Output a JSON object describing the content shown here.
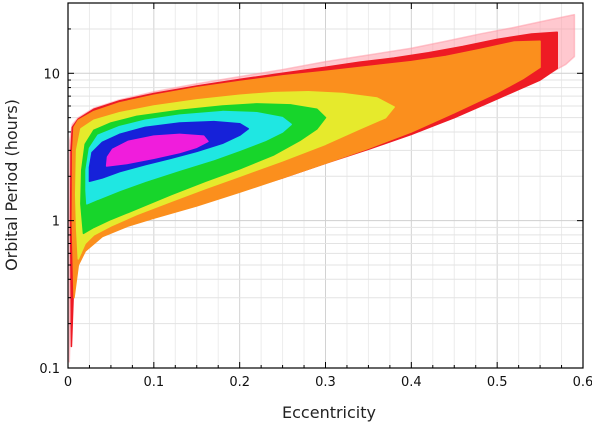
{
  "chart_data": {
    "type": "heatmap",
    "title": "",
    "xlabel": "Eccentricity",
    "ylabel": "Orbital Period (hours)",
    "xlim": [
      0,
      0.6
    ],
    "ylim": [
      0.1,
      30
    ],
    "y_scale": "log",
    "grid": true,
    "legend": "none",
    "x_ticks": [
      {
        "value": 0,
        "label": "0"
      },
      {
        "value": 0.1,
        "label": "0.1"
      },
      {
        "value": 0.2,
        "label": "0.2"
      },
      {
        "value": 0.3,
        "label": "0.3"
      },
      {
        "value": 0.4,
        "label": "0.4"
      },
      {
        "value": 0.5,
        "label": "0.5"
      },
      {
        "value": 0.6,
        "label": "0.6"
      }
    ],
    "y_ticks": [
      {
        "value": 0.1,
        "label": "0.1"
      },
      {
        "value": 1,
        "label": "1"
      },
      {
        "value": 10,
        "label": "10"
      }
    ],
    "levels": [
      {
        "name": "halo",
        "color": "#ff9aa8",
        "opacity": 0.55,
        "polygon": [
          [
            0.0015,
            0.11
          ],
          [
            0.003,
            0.2
          ],
          [
            0.006,
            0.4
          ],
          [
            0.01,
            0.6
          ],
          [
            0.02,
            0.75
          ],
          [
            0.04,
            0.88
          ],
          [
            0.07,
            1.0
          ],
          [
            0.1,
            1.12
          ],
          [
            0.15,
            1.35
          ],
          [
            0.2,
            1.65
          ],
          [
            0.25,
            2.0
          ],
          [
            0.3,
            2.5
          ],
          [
            0.35,
            3.1
          ],
          [
            0.4,
            3.9
          ],
          [
            0.45,
            5.0
          ],
          [
            0.5,
            6.8
          ],
          [
            0.55,
            9.2
          ],
          [
            0.58,
            11.5
          ],
          [
            0.59,
            13
          ],
          [
            0.59,
            25
          ],
          [
            0.56,
            23
          ],
          [
            0.52,
            20.5
          ],
          [
            0.48,
            18.5
          ],
          [
            0.44,
            16.5
          ],
          [
            0.4,
            14.8
          ],
          [
            0.35,
            13.3
          ],
          [
            0.3,
            12.0
          ],
          [
            0.25,
            10.6
          ],
          [
            0.2,
            9.5
          ],
          [
            0.15,
            8.5
          ],
          [
            0.1,
            7.5
          ],
          [
            0.06,
            6.6
          ],
          [
            0.03,
            5.8
          ],
          [
            0.012,
            5.0
          ],
          [
            0.005,
            4.5
          ],
          [
            0.002,
            3.5
          ],
          [
            0.001,
            1.0
          ]
        ]
      },
      {
        "name": "red",
        "color": "#ee1b24",
        "opacity": 1,
        "polygon": [
          [
            0.004,
            0.14
          ],
          [
            0.006,
            0.3
          ],
          [
            0.01,
            0.5
          ],
          [
            0.02,
            0.68
          ],
          [
            0.04,
            0.82
          ],
          [
            0.07,
            0.95
          ],
          [
            0.1,
            1.06
          ],
          [
            0.15,
            1.28
          ],
          [
            0.2,
            1.58
          ],
          [
            0.25,
            1.95
          ],
          [
            0.3,
            2.45
          ],
          [
            0.35,
            3.05
          ],
          [
            0.4,
            3.85
          ],
          [
            0.45,
            5.0
          ],
          [
            0.5,
            6.7
          ],
          [
            0.55,
            9.0
          ],
          [
            0.57,
            10.8
          ],
          [
            0.57,
            19
          ],
          [
            0.54,
            18.5
          ],
          [
            0.5,
            17
          ],
          [
            0.46,
            15.2
          ],
          [
            0.42,
            13.8
          ],
          [
            0.38,
            12.7
          ],
          [
            0.34,
            11.9
          ],
          [
            0.3,
            11.0
          ],
          [
            0.25,
            10.0
          ],
          [
            0.2,
            9.1
          ],
          [
            0.15,
            8.2
          ],
          [
            0.1,
            7.3
          ],
          [
            0.06,
            6.5
          ],
          [
            0.03,
            5.7
          ],
          [
            0.012,
            4.9
          ],
          [
            0.005,
            4.3
          ],
          [
            0.0035,
            3.0
          ],
          [
            0.003,
            1.0
          ]
        ]
      },
      {
        "name": "orange",
        "color": "#fb8f1d",
        "opacity": 1,
        "polygon": [
          [
            0.007,
            0.3
          ],
          [
            0.012,
            0.5
          ],
          [
            0.02,
            0.62
          ],
          [
            0.04,
            0.78
          ],
          [
            0.07,
            0.92
          ],
          [
            0.1,
            1.04
          ],
          [
            0.15,
            1.26
          ],
          [
            0.2,
            1.56
          ],
          [
            0.25,
            1.95
          ],
          [
            0.3,
            2.45
          ],
          [
            0.35,
            3.1
          ],
          [
            0.4,
            4.0
          ],
          [
            0.45,
            5.4
          ],
          [
            0.5,
            7.4
          ],
          [
            0.53,
            9.2
          ],
          [
            0.55,
            11
          ],
          [
            0.55,
            16.5
          ],
          [
            0.52,
            16.3
          ],
          [
            0.48,
            14.5
          ],
          [
            0.44,
            13.0
          ],
          [
            0.4,
            12.0
          ],
          [
            0.36,
            11.3
          ],
          [
            0.3,
            10.3
          ],
          [
            0.25,
            9.6
          ],
          [
            0.2,
            8.8
          ],
          [
            0.15,
            8.0
          ],
          [
            0.1,
            7.1
          ],
          [
            0.06,
            6.3
          ],
          [
            0.03,
            5.5
          ],
          [
            0.012,
            4.8
          ],
          [
            0.007,
            4.3
          ],
          [
            0.0055,
            3.0
          ],
          [
            0.005,
            1.0
          ]
        ]
      },
      {
        "name": "yellow",
        "color": "#e6ea2c",
        "opacity": 1,
        "polygon": [
          [
            0.012,
            0.55
          ],
          [
            0.02,
            0.7
          ],
          [
            0.03,
            0.8
          ],
          [
            0.05,
            0.92
          ],
          [
            0.08,
            1.1
          ],
          [
            0.12,
            1.35
          ],
          [
            0.16,
            1.65
          ],
          [
            0.2,
            2.0
          ],
          [
            0.25,
            2.55
          ],
          [
            0.3,
            3.3
          ],
          [
            0.34,
            4.2
          ],
          [
            0.37,
            5.0
          ],
          [
            0.38,
            5.9
          ],
          [
            0.36,
            6.8
          ],
          [
            0.32,
            7.3
          ],
          [
            0.28,
            7.5
          ],
          [
            0.24,
            7.4
          ],
          [
            0.2,
            7.1
          ],
          [
            0.15,
            6.6
          ],
          [
            0.1,
            6.0
          ],
          [
            0.06,
            5.4
          ],
          [
            0.03,
            4.8
          ],
          [
            0.015,
            4.2
          ],
          [
            0.01,
            3.0
          ],
          [
            0.009,
            1.5
          ],
          [
            0.01,
            0.9
          ]
        ]
      },
      {
        "name": "green",
        "color": "#17d52b",
        "opacity": 1,
        "polygon": [
          [
            0.018,
            0.82
          ],
          [
            0.03,
            0.9
          ],
          [
            0.05,
            1.02
          ],
          [
            0.08,
            1.2
          ],
          [
            0.12,
            1.5
          ],
          [
            0.16,
            1.85
          ],
          [
            0.2,
            2.25
          ],
          [
            0.24,
            2.8
          ],
          [
            0.27,
            3.5
          ],
          [
            0.29,
            4.2
          ],
          [
            0.3,
            5.0
          ],
          [
            0.29,
            5.7
          ],
          [
            0.26,
            6.1
          ],
          [
            0.22,
            6.2
          ],
          [
            0.18,
            6.0
          ],
          [
            0.13,
            5.6
          ],
          [
            0.08,
            5.1
          ],
          [
            0.05,
            4.6
          ],
          [
            0.03,
            4.1
          ],
          [
            0.02,
            3.3
          ],
          [
            0.016,
            2.2
          ],
          [
            0.015,
            1.3
          ]
        ]
      },
      {
        "name": "cyan",
        "color": "#1fe7e2",
        "opacity": 1,
        "polygon": [
          [
            0.022,
            1.3
          ],
          [
            0.035,
            1.4
          ],
          [
            0.06,
            1.6
          ],
          [
            0.09,
            1.85
          ],
          [
            0.13,
            2.2
          ],
          [
            0.17,
            2.6
          ],
          [
            0.2,
            3.0
          ],
          [
            0.23,
            3.5
          ],
          [
            0.25,
            4.0
          ],
          [
            0.26,
            4.5
          ],
          [
            0.25,
            5.0
          ],
          [
            0.22,
            5.4
          ],
          [
            0.18,
            5.5
          ],
          [
            0.13,
            5.2
          ],
          [
            0.09,
            4.8
          ],
          [
            0.06,
            4.35
          ],
          [
            0.035,
            3.8
          ],
          [
            0.025,
            3.1
          ],
          [
            0.021,
            2.2
          ],
          [
            0.021,
            1.6
          ]
        ]
      },
      {
        "name": "blue",
        "color": "#1621d9",
        "opacity": 1,
        "polygon": [
          [
            0.025,
            1.85
          ],
          [
            0.04,
            1.95
          ],
          [
            0.06,
            2.15
          ],
          [
            0.09,
            2.4
          ],
          [
            0.12,
            2.65
          ],
          [
            0.15,
            2.95
          ],
          [
            0.18,
            3.35
          ],
          [
            0.2,
            3.8
          ],
          [
            0.21,
            4.2
          ],
          [
            0.2,
            4.55
          ],
          [
            0.17,
            4.7
          ],
          [
            0.13,
            4.6
          ],
          [
            0.09,
            4.3
          ],
          [
            0.06,
            3.85
          ],
          [
            0.04,
            3.4
          ],
          [
            0.028,
            2.9
          ],
          [
            0.025,
            2.3
          ]
        ]
      },
      {
        "name": "magenta",
        "color": "#f01ddc",
        "opacity": 1,
        "polygon": [
          [
            0.045,
            2.35
          ],
          [
            0.07,
            2.45
          ],
          [
            0.1,
            2.65
          ],
          [
            0.13,
            2.9
          ],
          [
            0.15,
            3.15
          ],
          [
            0.163,
            3.45
          ],
          [
            0.158,
            3.75
          ],
          [
            0.13,
            3.85
          ],
          [
            0.1,
            3.75
          ],
          [
            0.07,
            3.45
          ],
          [
            0.052,
            3.05
          ],
          [
            0.046,
            2.7
          ]
        ]
      }
    ]
  }
}
